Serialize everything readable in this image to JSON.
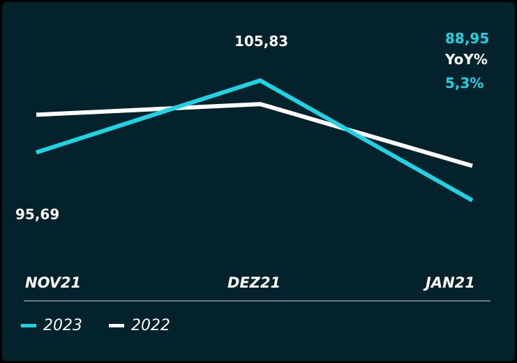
{
  "colors": {
    "background": "#03222b",
    "series_2023": "#1fd3e4",
    "series_2022": "#ffffff",
    "divider": "#cfd8dc"
  },
  "annotations": {
    "first_2023": "95,69",
    "peak_2023": "105,83",
    "last_2023": "88,95",
    "yoy_label": "YoY%",
    "yoy_value": "5,3%"
  },
  "chart_data": {
    "type": "line",
    "title": "",
    "xlabel": "",
    "ylabel": "",
    "categories": [
      "NOV21",
      "DEZ21",
      "JAN21"
    ],
    "ylim": [
      80,
      115
    ],
    "grid": false,
    "legend_position": "bottom-left",
    "series": [
      {
        "name": "2023",
        "color": "#1fd3e4",
        "values": [
          95.69,
          105.83,
          88.95
        ]
      },
      {
        "name": "2022",
        "color": "#ffffff",
        "values": [
          101.0,
          102.5,
          93.8
        ]
      }
    ]
  }
}
